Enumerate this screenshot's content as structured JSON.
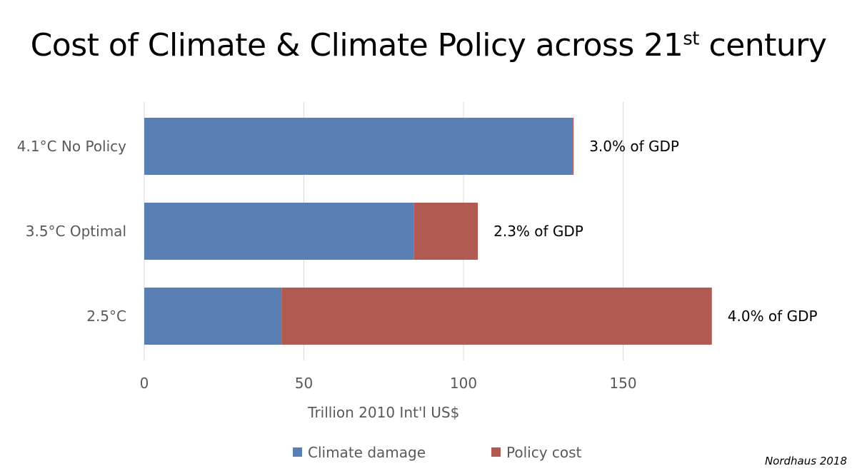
{
  "chart_data": {
    "type": "bar",
    "orientation": "horizontal",
    "stacked": true,
    "title": "Cost of Climate & Climate Policy across 21",
    "title_superscript": "st",
    "title_suffix": " century",
    "categories": [
      "4.1°C No Policy",
      "3.5°C Optimal",
      "2.5°C"
    ],
    "series": [
      {
        "name": "Climate damage",
        "color": "#5A7FB5",
        "values": [
          134.2,
          84.4,
          43.0
        ]
      },
      {
        "name": "Policy cost",
        "color": "#B15A52",
        "values": [
          0.3,
          20.1,
          134.8
        ]
      }
    ],
    "data_labels": [
      "3.0% of GDP",
      "2.3% of GDP",
      "4.0% of GDP"
    ],
    "xlabel": "Trillion 2010 Int'l US$",
    "ylabel": "",
    "xlim": [
      0,
      200
    ],
    "xticks": [
      0,
      50,
      100,
      150
    ],
    "grid": true,
    "legend_position": "bottom",
    "source_note": "Nordhaus 2018"
  }
}
